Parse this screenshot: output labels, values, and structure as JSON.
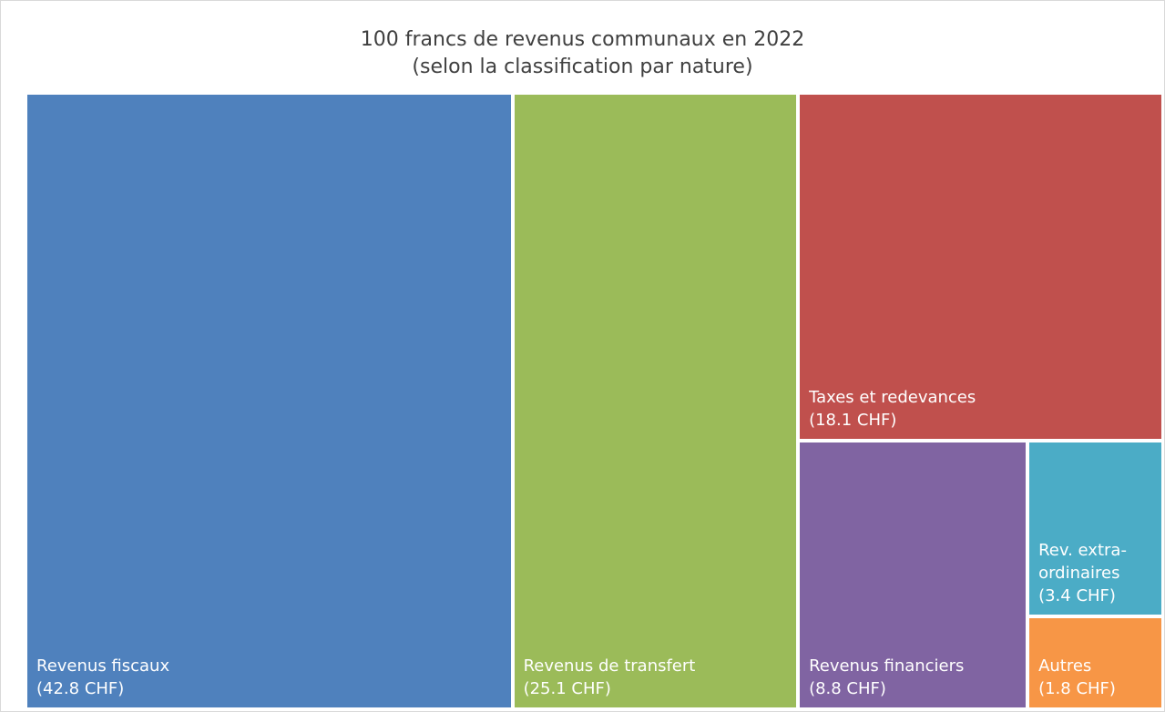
{
  "chart_data": {
    "type": "treemap",
    "title": "100 francs de revenus communaux en 2022",
    "subtitle": "(selon la classification par nature)",
    "categories": [
      "Revenus fiscaux",
      "Revenus de transfert",
      "Taxes et redevances",
      "Revenus financiers",
      "Rev. extra-ordinaires",
      "Autres"
    ],
    "values": [
      42.8,
      25.1,
      18.1,
      8.8,
      3.4,
      1.8
    ],
    "value_labels": [
      "(42.8 CHF)",
      "(25.1 CHF)",
      "(18.1 CHF)",
      "(8.8 CHF)",
      "(3.4 CHF)",
      "(1.8 CHF)"
    ],
    "colors": [
      "#4f81bd",
      "#9bbb59",
      "#c0504d",
      "#8064a2",
      "#4bacc6",
      "#f79646"
    ]
  }
}
